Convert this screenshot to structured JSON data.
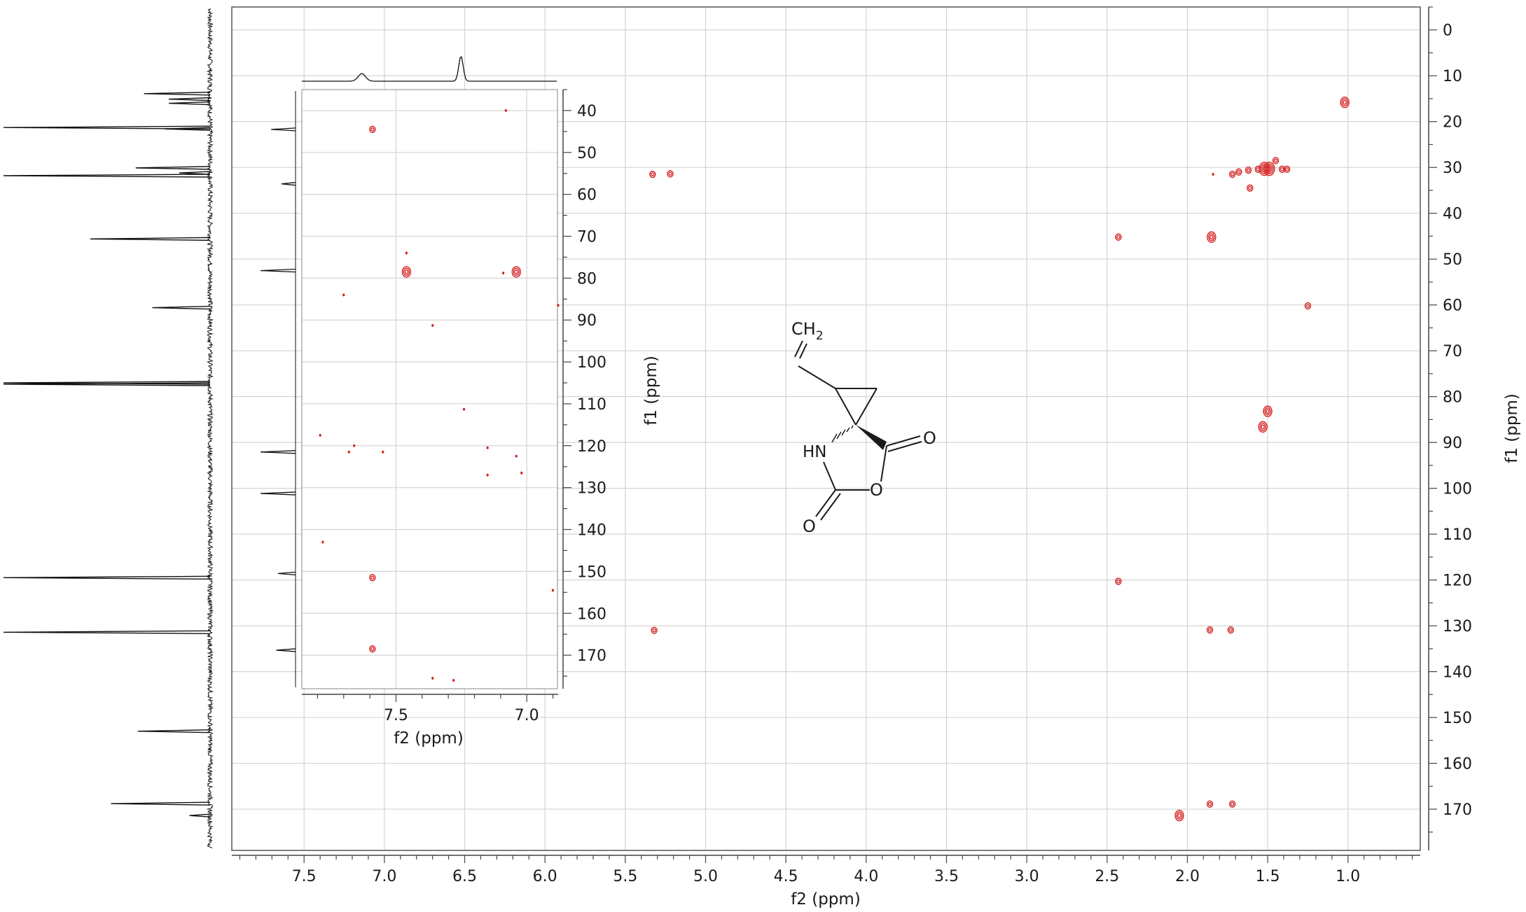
{
  "chart_data": [
    {
      "type": "scatter",
      "subtype": "2d-nmr-hmbc-contour",
      "title": "",
      "xlabel": "f2 (ppm)",
      "ylabel": "f1 (ppm)",
      "xlim": [
        7.95,
        0.55
      ],
      "ylim": [
        -5,
        179
      ],
      "x_ticks": [
        7.5,
        7.0,
        6.5,
        6.0,
        5.5,
        5.0,
        4.5,
        4.0,
        3.5,
        3.0,
        2.5,
        2.0,
        1.5,
        1.0
      ],
      "x_tick_labels": [
        "7.5",
        "7.0",
        "6.5",
        "6.0",
        "5.5",
        "5.0",
        "4.5",
        "4.0",
        "3.5",
        "3.0",
        "2.5",
        "2.0",
        "1.5",
        "1.0"
      ],
      "y_ticks": [
        0,
        10,
        20,
        30,
        40,
        50,
        60,
        70,
        80,
        90,
        100,
        110,
        120,
        130,
        140,
        150,
        160,
        170
      ],
      "y_tick_labels": [
        "0",
        "10",
        "20",
        "30",
        "40",
        "50",
        "60",
        "70",
        "80",
        "90",
        "100",
        "110",
        "120",
        "130",
        "140",
        "150",
        "160",
        "170"
      ],
      "grid": true,
      "contour_color": "#d42020",
      "points": [
        {
          "x": 1.02,
          "y": 15.8,
          "size": 2
        },
        {
          "x": 1.52,
          "y": 30.3,
          "size": 3
        },
        {
          "x": 1.49,
          "y": 30.3,
          "size": 3
        },
        {
          "x": 1.45,
          "y": 28.5,
          "size": 1
        },
        {
          "x": 1.41,
          "y": 30.4,
          "size": 1
        },
        {
          "x": 1.38,
          "y": 30.4,
          "size": 1
        },
        {
          "x": 1.56,
          "y": 30.4,
          "size": 1
        },
        {
          "x": 1.62,
          "y": 30.6,
          "size": 1
        },
        {
          "x": 1.68,
          "y": 31.0,
          "size": 1
        },
        {
          "x": 1.72,
          "y": 31.5,
          "size": 1
        },
        {
          "x": 1.84,
          "y": 31.5,
          "size": 0
        },
        {
          "x": 1.61,
          "y": 34.5,
          "size": 1
        },
        {
          "x": 2.43,
          "y": 45.2,
          "size": 1
        },
        {
          "x": 1.85,
          "y": 45.2,
          "size": 2
        },
        {
          "x": 1.25,
          "y": 60.2,
          "size": 1
        },
        {
          "x": 1.5,
          "y": 83.2,
          "size": 2
        },
        {
          "x": 1.53,
          "y": 86.6,
          "size": 2
        },
        {
          "x": 5.33,
          "y": 31.5,
          "size": 1
        },
        {
          "x": 5.22,
          "y": 31.4,
          "size": 1
        },
        {
          "x": 2.43,
          "y": 120.3,
          "size": 1
        },
        {
          "x": 5.32,
          "y": 131.0,
          "size": 1
        },
        {
          "x": 1.86,
          "y": 130.9,
          "size": 1
        },
        {
          "x": 1.73,
          "y": 130.9,
          "size": 1
        },
        {
          "x": 2.05,
          "y": 171.4,
          "size": 2
        },
        {
          "x": 1.86,
          "y": 168.9,
          "size": 1
        },
        {
          "x": 1.72,
          "y": 168.9,
          "size": 1
        }
      ],
      "f1_projection_peaks": [
        {
          "y": 13.9,
          "height": 0.32
        },
        {
          "y": 15.1,
          "height": 0.2
        },
        {
          "y": 16.0,
          "height": 0.2
        },
        {
          "y": 21.3,
          "height": 1.0
        },
        {
          "y": 21.6,
          "height": 0.22
        },
        {
          "y": 30.1,
          "height": 0.36
        },
        {
          "y": 31.2,
          "height": 0.15
        },
        {
          "y": 31.8,
          "height": 1.0
        },
        {
          "y": 45.6,
          "height": 0.58
        },
        {
          "y": 60.6,
          "height": 0.28
        },
        {
          "y": 77.3,
          "height": 1.0
        },
        {
          "y": 77.0,
          "height": 1.0
        },
        {
          "y": 119.5,
          "height": 1.0
        },
        {
          "y": 131.4,
          "height": 1.0
        },
        {
          "y": 153.0,
          "height": 0.35
        },
        {
          "y": 168.8,
          "height": 0.48
        },
        {
          "y": 171.4,
          "height": 0.1
        }
      ]
    },
    {
      "type": "scatter",
      "subtype": "inset-2d-nmr-contour",
      "title": "",
      "xlabel": "f2 (ppm)",
      "ylabel": "",
      "xlim": [
        7.86,
        6.88
      ],
      "ylim": [
        35,
        178
      ],
      "x_ticks": [
        7.5,
        7.0
      ],
      "x_tick_labels": [
        "7.5",
        "7.0"
      ],
      "y_ticks": [
        40,
        50,
        60,
        70,
        80,
        90,
        100,
        110,
        120,
        130,
        140,
        150,
        160,
        170
      ],
      "y_tick_labels": [
        "40",
        "50",
        "60",
        "70",
        "80",
        "90",
        "100",
        "110",
        "120",
        "130",
        "140",
        "150",
        "160",
        "170"
      ],
      "grid": true,
      "contour_color": "#d42020",
      "points": [
        {
          "x": 7.59,
          "y": 44.5,
          "size": 1
        },
        {
          "x": 7.46,
          "y": 78.5,
          "size": 2
        },
        {
          "x": 7.04,
          "y": 78.5,
          "size": 2
        },
        {
          "x": 7.46,
          "y": 74.0,
          "size": 0
        },
        {
          "x": 7.09,
          "y": 78.8,
          "size": 0
        },
        {
          "x": 7.7,
          "y": 84.0,
          "size": 0
        },
        {
          "x": 7.36,
          "y": 91.3,
          "size": 0
        },
        {
          "x": 7.24,
          "y": 111.3,
          "size": 0
        },
        {
          "x": 7.79,
          "y": 117.5,
          "size": 0
        },
        {
          "x": 7.66,
          "y": 120.0,
          "size": 0
        },
        {
          "x": 7.68,
          "y": 121.5,
          "size": 0
        },
        {
          "x": 7.55,
          "y": 121.5,
          "size": 0
        },
        {
          "x": 7.15,
          "y": 120.5,
          "size": 0
        },
        {
          "x": 7.04,
          "y": 122.5,
          "size": 0
        },
        {
          "x": 7.02,
          "y": 126.5,
          "size": 0
        },
        {
          "x": 7.15,
          "y": 127.0,
          "size": 0
        },
        {
          "x": 7.78,
          "y": 143.0,
          "size": 0
        },
        {
          "x": 7.59,
          "y": 151.5,
          "size": 1
        },
        {
          "x": 7.59,
          "y": 168.5,
          "size": 1
        },
        {
          "x": 7.36,
          "y": 175.5,
          "size": 0
        },
        {
          "x": 7.28,
          "y": 176.0,
          "size": 0
        },
        {
          "x": 6.9,
          "y": 154.5,
          "size": 0
        },
        {
          "x": 6.88,
          "y": 86.5,
          "size": 0
        },
        {
          "x": 7.08,
          "y": 40.0,
          "size": 0
        }
      ],
      "f2_projection_peaks": [
        {
          "x": 7.63,
          "height": 0.3
        },
        {
          "x": 7.25,
          "height": 1.0
        }
      ],
      "f1_projection_peaks": [
        {
          "y": 44.5,
          "height": 0.7
        },
        {
          "y": 57.5,
          "height": 0.4
        },
        {
          "y": 78.2,
          "height": 1.0
        },
        {
          "y": 121.5,
          "height": 1.0
        },
        {
          "y": 131.4,
          "height": 1.0
        },
        {
          "y": 150.5,
          "height": 0.5
        },
        {
          "y": 168.8,
          "height": 0.55
        }
      ]
    }
  ],
  "structure": {
    "labels": {
      "ch2": "CH",
      "ch2_sub": "2",
      "nh": "HN",
      "o_carbonyl_right": "O",
      "o_ring": "O",
      "o_carbonyl_bottom": "O"
    }
  }
}
